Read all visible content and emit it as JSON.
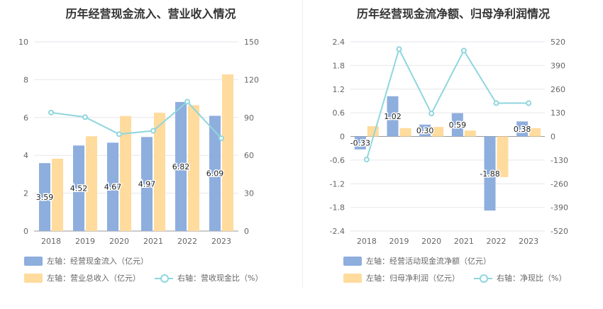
{
  "colors": {
    "bar_blue": "#8eaedd",
    "bar_orange": "#ffdb9d",
    "line": "#8fd6dd",
    "grid": "#e6e6ee",
    "text": "#666666"
  },
  "chart_data": [
    {
      "type": "bar",
      "title": "历年经营现金流入、营业收入情况",
      "categories": [
        "2018",
        "2019",
        "2020",
        "2021",
        "2022",
        "2023"
      ],
      "left_axis": {
        "ticks": [
          "0",
          "2",
          "4",
          "6",
          "8",
          "10"
        ],
        "ylim": [
          0,
          10
        ]
      },
      "right_axis": {
        "ticks": [
          "0",
          "30",
          "60",
          "90",
          "120",
          "150"
        ],
        "ylim": [
          0,
          150
        ]
      },
      "series": [
        {
          "name": "左轴：经营现金流入（亿元）",
          "axis": "left",
          "kind": "bar",
          "values": [
            3.59,
            4.52,
            4.67,
            4.97,
            6.82,
            6.09
          ],
          "labels": [
            "3.59",
            "4.52",
            "4.67",
            "4.97",
            "6.82",
            "6.09"
          ]
        },
        {
          "name": "左轴：营业总收入（亿元）",
          "axis": "left",
          "kind": "bar",
          "values": [
            3.82,
            5.01,
            6.08,
            6.25,
            6.65,
            8.28
          ]
        },
        {
          "name": "右轴：营收现金比（%）",
          "axis": "right",
          "kind": "line",
          "values": [
            93.9,
            90.3,
            76.8,
            79.5,
            102.5,
            73.5
          ]
        }
      ],
      "grid": true,
      "legend_position": "bottom-left"
    },
    {
      "type": "bar",
      "title": "历年经营现金流净额、归母净利润情况",
      "categories": [
        "2018",
        "2019",
        "2020",
        "2021",
        "2022",
        "2023"
      ],
      "left_axis": {
        "ticks": [
          "-2.4",
          "-1.8",
          "-1.2",
          "-0.6",
          "0",
          "0.6",
          "1.2",
          "1.8",
          "2.4"
        ],
        "ylim": [
          -2.4,
          2.4
        ]
      },
      "right_axis": {
        "ticks": [
          "-520",
          "-390",
          "-260",
          "-130",
          "0",
          "130",
          "260",
          "390",
          "520"
        ],
        "ylim": [
          -520,
          520
        ]
      },
      "series": [
        {
          "name": "左轴：经营活动现金流净额（亿元）",
          "axis": "left",
          "kind": "bar",
          "values": [
            -0.33,
            1.02,
            0.3,
            0.59,
            -1.88,
            0.38
          ],
          "labels": [
            "-0.33",
            "1.02",
            "0.30",
            "0.59",
            "-1.88",
            "0.38"
          ]
        },
        {
          "name": "左轴：归母净利润（亿元）",
          "axis": "left",
          "kind": "bar",
          "values": [
            0.26,
            0.21,
            0.24,
            0.15,
            -1.03,
            0.21
          ]
        },
        {
          "name": "右轴：净现比（%）",
          "axis": "right",
          "kind": "line",
          "values": [
            -127,
            480,
            126,
            472,
            183,
            183
          ]
        }
      ],
      "grid": true,
      "legend_position": "bottom-left"
    }
  ]
}
